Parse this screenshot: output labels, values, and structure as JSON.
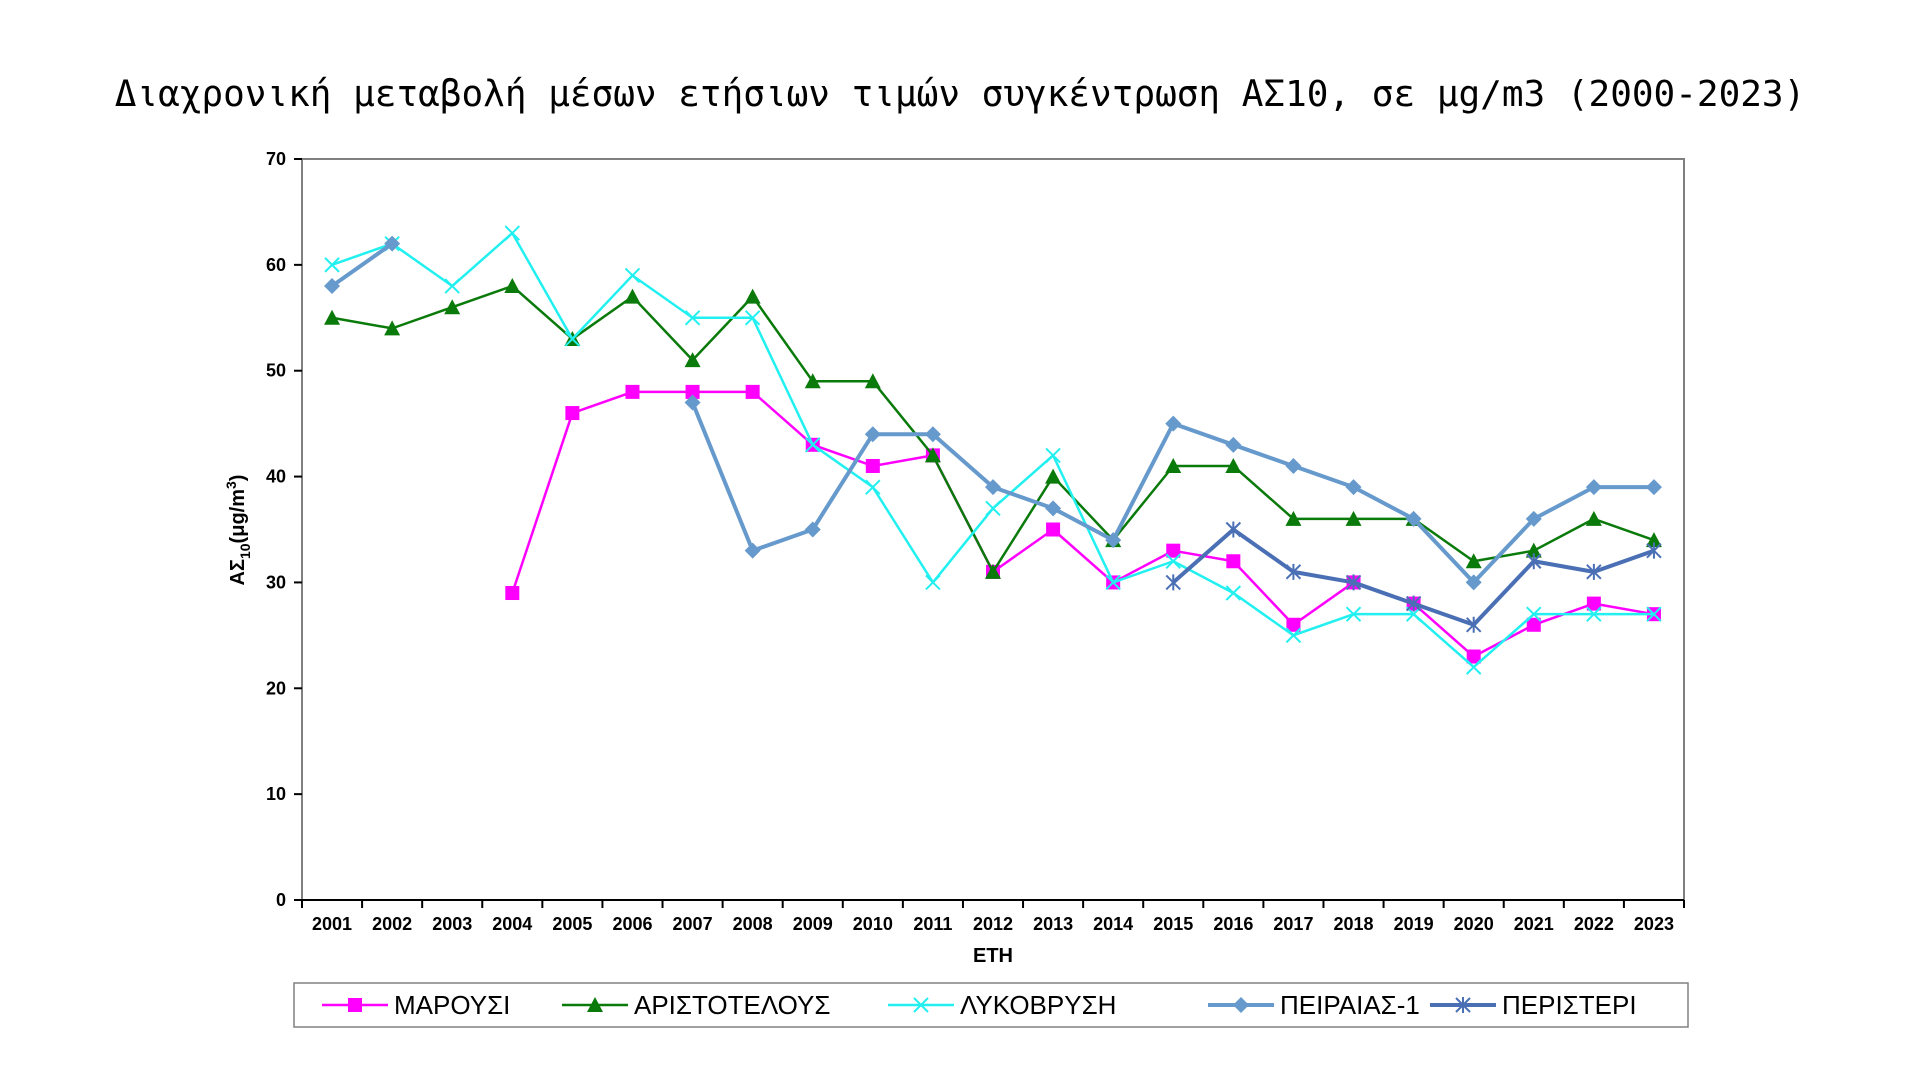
{
  "chart_data": {
    "type": "line",
    "title": "Διαχρονική μεταβολή μέσων ετήσιων τιμών συγκέντρωση ΑΣ10, σε μg/m3 (2000-2023)",
    "xlabel": "ΕΤΗ",
    "ylabel": {
      "main": "ΑΣ",
      "sub": "10",
      "rest": "(μg/m",
      "sup": "3",
      "close": ")"
    },
    "ylim": [
      0,
      70
    ],
    "yticks": [
      0,
      10,
      20,
      30,
      40,
      50,
      60,
      70
    ],
    "categories": [
      "2001",
      "2002",
      "2003",
      "2004",
      "2005",
      "2006",
      "2007",
      "2008",
      "2009",
      "2010",
      "2011",
      "2012",
      "2013",
      "2014",
      "2015",
      "2016",
      "2017",
      "2018",
      "2019",
      "2020",
      "2021",
      "2022",
      "2023"
    ],
    "legend_position": "bottom",
    "series": [
      {
        "name": "ΜΑΡΟΥΣΙ",
        "color": "#FF00FF",
        "marker": "square",
        "values": [
          null,
          null,
          null,
          29,
          46,
          48,
          48,
          48,
          43,
          41,
          42,
          31,
          35,
          30,
          33,
          32,
          26,
          30,
          28,
          23,
          26,
          28,
          27
        ]
      },
      {
        "name": "ΑΡΙΣΤΟΤΕΛΟΥΣ",
        "color": "#0A7A0A",
        "marker": "triangle",
        "values": [
          55,
          54,
          56,
          58,
          53,
          57,
          51,
          57,
          49,
          49,
          42,
          31,
          40,
          34,
          41,
          41,
          36,
          36,
          36,
          32,
          33,
          36,
          34
        ]
      },
      {
        "name": "ΛΥΚΟΒΡΥΣΗ",
        "color": "#22F0F0",
        "marker": "x",
        "values": [
          60,
          62,
          58,
          63,
          53,
          59,
          55,
          55,
          43,
          39,
          30,
          37,
          42,
          30,
          32,
          29,
          25,
          27,
          27,
          22,
          27,
          27,
          27
        ]
      },
      {
        "name": "ΠΕΙΡΑΙΑΣ-1",
        "color": "#6699CC",
        "marker": "diamond",
        "values": [
          58,
          62,
          null,
          null,
          null,
          null,
          47,
          33,
          35,
          44,
          44,
          39,
          37,
          34,
          45,
          43,
          41,
          39,
          36,
          30,
          36,
          39,
          39
        ]
      },
      {
        "name": "ΠΕΡΙΣΤΕΡΙ",
        "color": "#4A6FB5",
        "marker": "star",
        "values": [
          null,
          null,
          null,
          null,
          null,
          null,
          null,
          null,
          null,
          null,
          null,
          null,
          null,
          null,
          30,
          35,
          31,
          30,
          28,
          26,
          32,
          31,
          33
        ]
      }
    ]
  }
}
